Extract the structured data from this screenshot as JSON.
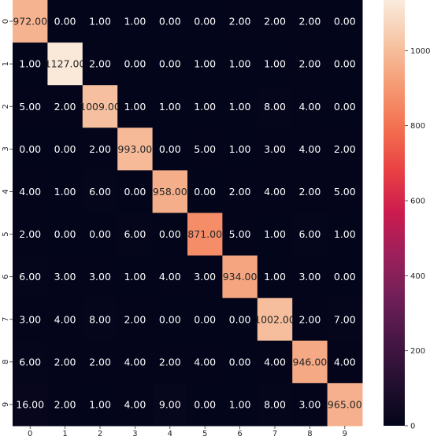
{
  "chart_data": {
    "type": "heatmap",
    "title": "",
    "xlabel": "",
    "ylabel": "",
    "x_categories": [
      "0",
      "1",
      "2",
      "3",
      "4",
      "5",
      "6",
      "7",
      "8",
      "9"
    ],
    "y_categories": [
      "0",
      "1",
      "2",
      "3",
      "4",
      "5",
      "6",
      "7",
      "8",
      "9"
    ],
    "value_format": "2 decimals",
    "matrix": [
      [
        972,
        0,
        1,
        1,
        0,
        0,
        2,
        2,
        2,
        0
      ],
      [
        1,
        1127,
        2,
        0,
        0,
        1,
        1,
        1,
        2,
        0
      ],
      [
        5,
        2,
        1009,
        1,
        1,
        1,
        1,
        8,
        4,
        0
      ],
      [
        0,
        0,
        2,
        993,
        0,
        5,
        1,
        3,
        4,
        2
      ],
      [
        4,
        1,
        6,
        0,
        958,
        0,
        2,
        4,
        2,
        5
      ],
      [
        2,
        0,
        0,
        6,
        0,
        871,
        5,
        1,
        6,
        1
      ],
      [
        6,
        3,
        3,
        1,
        4,
        3,
        934,
        1,
        3,
        0
      ],
      [
        3,
        4,
        8,
        2,
        0,
        0,
        0,
        1002,
        2,
        7
      ],
      [
        6,
        2,
        2,
        4,
        2,
        4,
        0,
        4,
        946,
        4
      ],
      [
        16,
        2,
        1,
        4,
        9,
        0,
        1,
        8,
        3,
        965
      ]
    ],
    "color_range": [
      0,
      1135
    ],
    "colormap": "rocket",
    "colorbar": {
      "ticks": [
        0,
        200,
        400,
        600,
        800,
        1000
      ],
      "tick_labels": [
        "0",
        "200",
        "400",
        "600",
        "800",
        "1000"
      ]
    },
    "grid": false,
    "legend": "colorbar-right"
  }
}
